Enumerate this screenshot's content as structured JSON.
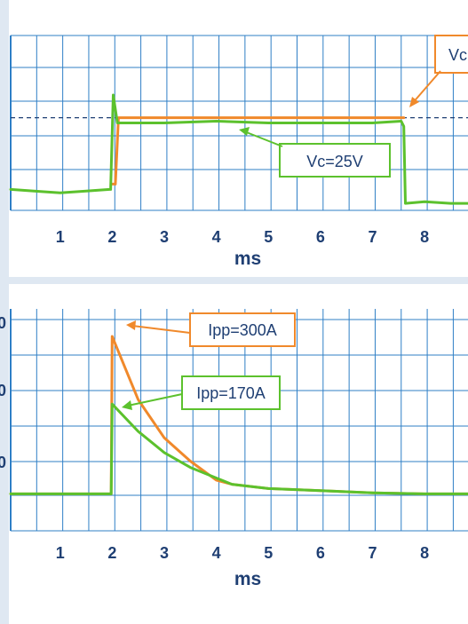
{
  "colors": {
    "background": "#dfe8f2",
    "panel": "#ffffff",
    "grid": "#2f7fc6",
    "tick_text": "#1f3f73",
    "green": "#5cc12d",
    "orange": "#f0892b",
    "dashed": "#1f3f73"
  },
  "chart_data": [
    {
      "type": "line",
      "title": "",
      "xlabel": "ms",
      "ylabel": "",
      "x_ticks": [
        "1",
        "2",
        "3",
        "4",
        "5",
        "6",
        "7",
        "8"
      ],
      "xlim": [
        0.05,
        8.85
      ],
      "ylim": [
        0,
        100
      ],
      "grid": true,
      "series": [
        {
          "color": "orange",
          "x": [
            2.0,
            2.06,
            2.12,
            7.55,
            7.6
          ],
          "y": [
            15,
            15,
            53,
            53,
            53
          ]
        },
        {
          "color": "green",
          "x": [
            0.05,
            0.5,
            1.0,
            1.5,
            1.95,
            1.97,
            2.02,
            2.1,
            3,
            4,
            5,
            6,
            7,
            7.55,
            7.6,
            7.63,
            8.0,
            8.5,
            8.85
          ],
          "y": [
            12,
            11,
            10,
            11,
            12,
            12,
            66,
            50,
            50,
            51,
            50,
            50,
            50,
            51,
            48,
            4,
            5,
            4,
            4
          ]
        }
      ],
      "reference_line": {
        "style": "dashed",
        "y": 53
      },
      "annotations": [
        {
          "text": "Vc=25V",
          "color": "green",
          "x": 4.5,
          "y": 49
        },
        {
          "text": "Vc",
          "color": "orange",
          "x": 7.65,
          "y": 54
        }
      ]
    },
    {
      "type": "line",
      "title": "",
      "xlabel": "ms",
      "ylabel": "",
      "x_ticks": [
        "1",
        "2",
        "3",
        "4",
        "5",
        "6",
        "7",
        "8"
      ],
      "xlim": [
        0.05,
        8.85
      ],
      "ylim": [
        0,
        100
      ],
      "grid": true,
      "series": [
        {
          "color": "orange",
          "x": [
            0.05,
            1.98,
            2.0,
            2.5,
            3.0,
            3.5,
            4.0,
            4.3,
            5,
            6,
            7,
            8,
            8.85
          ],
          "y": [
            17.5,
            17.5,
            92,
            62,
            44,
            33,
            24,
            22,
            20,
            19,
            18,
            17.5,
            17.5
          ]
        },
        {
          "color": "green",
          "x": [
            0.05,
            1.98,
            2.0,
            2.5,
            3.0,
            3.5,
            4.0,
            4.3,
            5,
            6,
            7,
            8,
            8.85
          ],
          "y": [
            17.5,
            17.5,
            60,
            47,
            37,
            30,
            25,
            22,
            20,
            19,
            18,
            17.5,
            17.5
          ]
        }
      ],
      "annotations": [
        {
          "text": "Ipp=300A",
          "color": "orange",
          "x": 2.05,
          "y": 92
        },
        {
          "text": "Ipp=170A",
          "color": "green",
          "x": 2.05,
          "y": 60
        }
      ],
      "y_tick_fragments": [
        "0",
        "0",
        "0"
      ]
    }
  ]
}
